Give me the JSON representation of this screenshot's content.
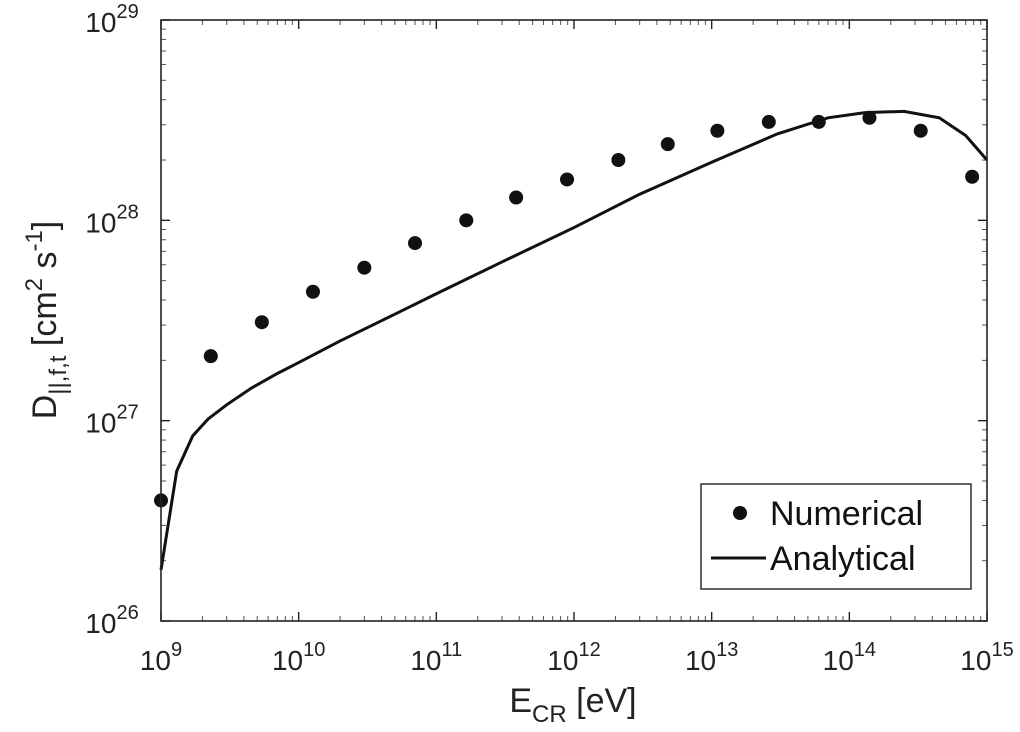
{
  "chart_data": {
    "type": "scatter",
    "x_scale": "log",
    "y_scale": "log",
    "xlim": [
      1000000000.0,
      1000000000000000.0
    ],
    "ylim": [
      1e+26,
      1e+29
    ],
    "grid": false,
    "legend_position": "bottom-right",
    "xlabel": {
      "main": "E",
      "sub": "CR",
      "rest": " [eV]"
    },
    "ylabel": {
      "main": "D",
      "sub": "||,f,t",
      "rest": " [cm",
      "sup1": "2",
      "mid": " s",
      "sup2": "-1",
      "end": "]"
    },
    "x_ticks": [
      {
        "base": "10",
        "exp": "9",
        "value": 1000000000.0
      },
      {
        "base": "10",
        "exp": "10",
        "value": 10000000000.0
      },
      {
        "base": "10",
        "exp": "11",
        "value": 100000000000.0
      },
      {
        "base": "10",
        "exp": "12",
        "value": 1000000000000.0
      },
      {
        "base": "10",
        "exp": "13",
        "value": 10000000000000.0
      },
      {
        "base": "10",
        "exp": "14",
        "value": 100000000000000.0
      },
      {
        "base": "10",
        "exp": "15",
        "value": 1000000000000000.0
      }
    ],
    "y_ticks": [
      {
        "base": "10",
        "exp": "26",
        "value": 1e+26
      },
      {
        "base": "10",
        "exp": "27",
        "value": 1e+27
      },
      {
        "base": "10",
        "exp": "28",
        "value": 1e+28
      },
      {
        "base": "10",
        "exp": "29",
        "value": 1e+29
      }
    ],
    "series": [
      {
        "name": "Numerical",
        "kind": "markers",
        "color": "#111111",
        "x": [
          1000000000.0,
          2300000000.0,
          5400000000.0,
          12700000000.0,
          30000000000.0,
          70000000000.0,
          165000000000.0,
          380000000000.0,
          890000000000.0,
          2100000000000.0,
          4800000000000.0,
          11000000000000.0,
          26000000000000.0,
          60000000000000.0,
          140000000000000.0,
          330000000000000.0,
          780000000000000.0
        ],
        "y": [
          4e+26,
          2.1e+27,
          3.1e+27,
          4.4e+27,
          5.8e+27,
          7.7e+27,
          1e+28,
          1.3e+28,
          1.6e+28,
          2e+28,
          2.4e+28,
          2.8e+28,
          3.1e+28,
          3.1e+28,
          3.25e+28,
          2.8e+28,
          1.65e+28
        ]
      },
      {
        "name": "Analytical",
        "kind": "line",
        "color": "#111111",
        "x": [
          1000000000.0,
          1300000000.0,
          1700000000.0,
          2200000000.0,
          3000000000.0,
          4500000000.0,
          7000000000.0,
          10000000000.0,
          20000000000.0,
          50000000000.0,
          100000000000.0,
          300000000000.0,
          1000000000000.0,
          3000000000000.0,
          10000000000000.0,
          30000000000000.0,
          70000000000000.0,
          130000000000000.0,
          250000000000000.0,
          450000000000000.0,
          700000000000000.0,
          1000000000000000.0
        ],
        "y": [
          1.8e+26,
          5.6e+26,
          8.4e+26,
          1.02e+27,
          1.2e+27,
          1.45e+27,
          1.72e+27,
          1.95e+27,
          2.5e+27,
          3.4e+27,
          4.3e+27,
          6.2e+27,
          9.2e+27,
          1.35e+28,
          1.95e+28,
          2.7e+28,
          3.25e+28,
          3.45e+28,
          3.5e+28,
          3.25e+28,
          2.65e+28,
          2e+28
        ]
      }
    ],
    "legend": [
      {
        "label": "Numerical",
        "kind": "marker"
      },
      {
        "label": "Analytical",
        "kind": "line"
      }
    ]
  }
}
